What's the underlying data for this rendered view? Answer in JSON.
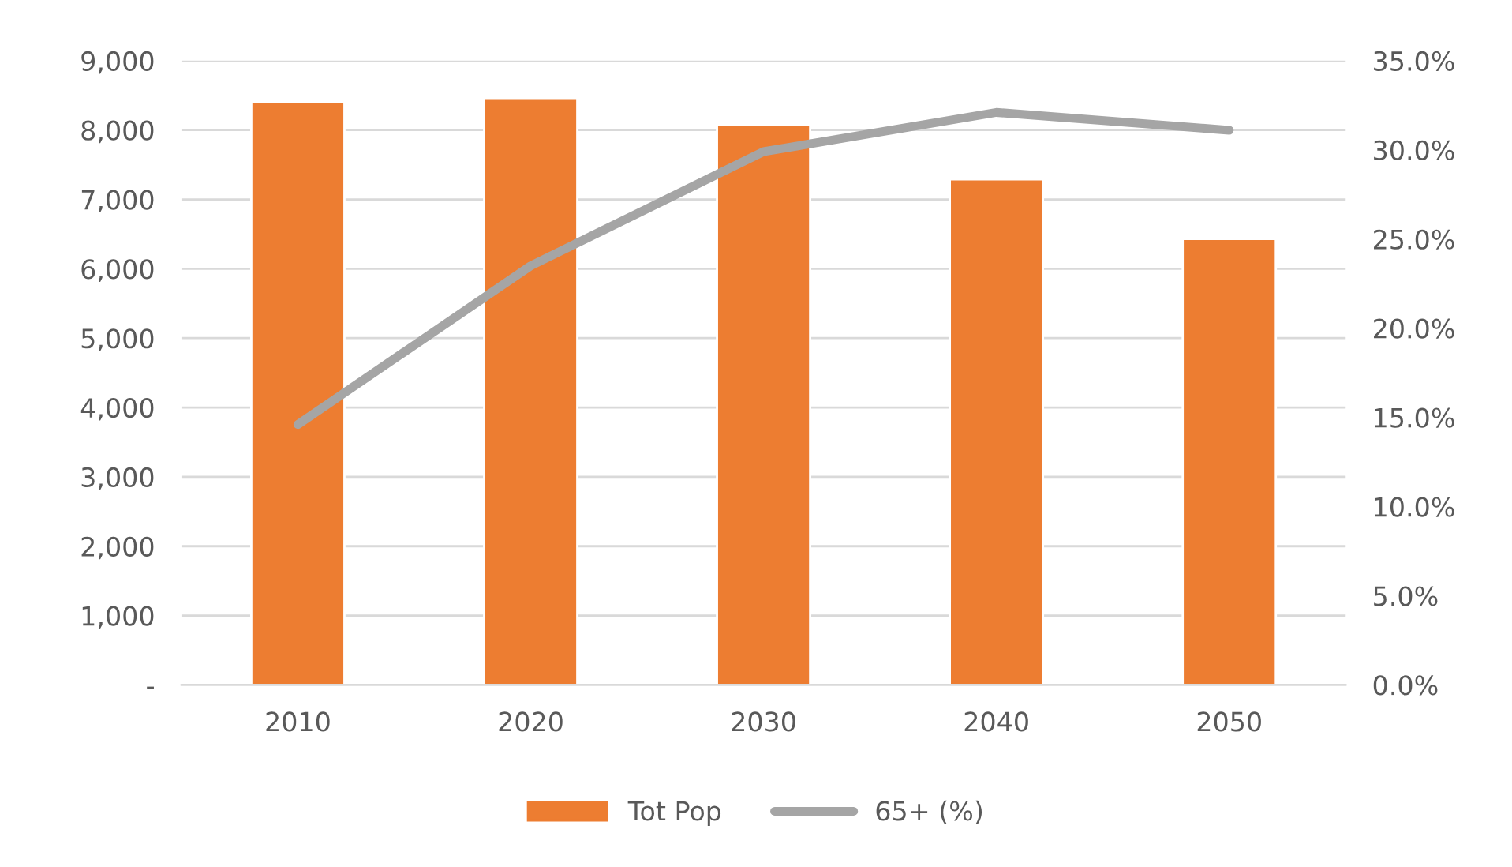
{
  "chart_data": {
    "type": "bar",
    "categories": [
      "2010",
      "2020",
      "2030",
      "2040",
      "2050"
    ],
    "series": [
      {
        "name": "Tot Pop",
        "color": "#ed7d31",
        "values": [
          8410,
          8450,
          8080,
          7290,
          6430
        ]
      },
      {
        "name": "65+ (%)",
        "type": "line",
        "axis": "y2",
        "color": "#a5a5a5",
        "values": [
          14.6,
          23.5,
          29.9,
          32.1,
          31.1
        ]
      }
    ],
    "ylim": [
      0,
      9000
    ],
    "yticks": [
      {
        "value": 0,
        "label": "-"
      },
      {
        "value": 1000,
        "label": "1,000"
      },
      {
        "value": 2000,
        "label": "2,000"
      },
      {
        "value": 3000,
        "label": "3,000"
      },
      {
        "value": 4000,
        "label": "4,000"
      },
      {
        "value": 5000,
        "label": "5,000"
      },
      {
        "value": 6000,
        "label": "6,000"
      },
      {
        "value": 7000,
        "label": "7,000"
      },
      {
        "value": 8000,
        "label": "8,000"
      },
      {
        "value": 9000,
        "label": "9,000"
      }
    ],
    "y2lim": [
      0,
      35
    ],
    "y2ticks": [
      {
        "value": 0,
        "label": "0.0%"
      },
      {
        "value": 5,
        "label": "5.0%"
      },
      {
        "value": 10,
        "label": "10.0%"
      },
      {
        "value": 15,
        "label": "15.0%"
      },
      {
        "value": 20,
        "label": "20.0%"
      },
      {
        "value": 25,
        "label": "25.0%"
      },
      {
        "value": 30,
        "label": "30.0%"
      },
      {
        "value": 35,
        "label": "35.0%"
      }
    ],
    "grid": "y",
    "legend": "bottom"
  }
}
